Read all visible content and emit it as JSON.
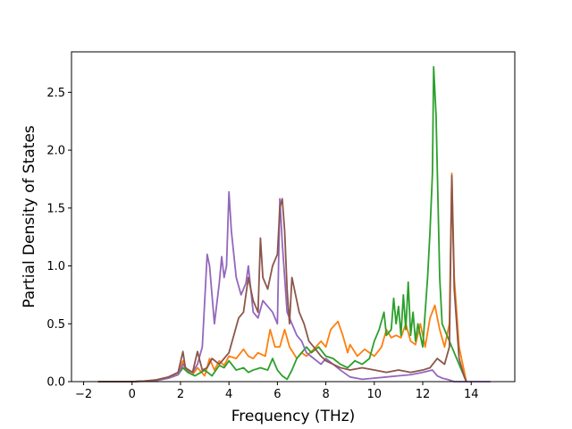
{
  "chart_data": {
    "type": "line",
    "title": "",
    "xlabel": "Frequency (THz)",
    "ylabel": "Partial Density of States",
    "xlim": [
      -2.5,
      15.8
    ],
    "ylim": [
      0,
      2.85
    ],
    "xticks": [
      -2,
      0,
      2,
      4,
      6,
      8,
      10,
      12,
      14
    ],
    "xtick_labels": [
      "−2",
      "0",
      "2",
      "4",
      "6",
      "8",
      "10",
      "12",
      "14"
    ],
    "yticks": [
      0.0,
      0.5,
      1.0,
      1.5,
      2.0,
      2.5
    ],
    "ytick_labels": [
      "0.0",
      "0.5",
      "1.0",
      "1.5",
      "2.0",
      "2.5"
    ],
    "grid": false,
    "legend": "none",
    "series": [
      {
        "color": "#ff7f0e",
        "points": [
          [
            -1.4,
            0
          ],
          [
            0,
            0
          ],
          [
            0.5,
            0.005
          ],
          [
            1.0,
            0.015
          ],
          [
            1.5,
            0.04
          ],
          [
            1.9,
            0.08
          ],
          [
            2.1,
            0.18
          ],
          [
            2.2,
            0.1
          ],
          [
            2.5,
            0.06
          ],
          [
            2.7,
            0.12
          ],
          [
            3.0,
            0.05
          ],
          [
            3.2,
            0.2
          ],
          [
            3.4,
            0.1
          ],
          [
            3.6,
            0.18
          ],
          [
            3.8,
            0.14
          ],
          [
            4.0,
            0.22
          ],
          [
            4.3,
            0.2
          ],
          [
            4.6,
            0.28
          ],
          [
            4.8,
            0.22
          ],
          [
            5.0,
            0.2
          ],
          [
            5.2,
            0.25
          ],
          [
            5.5,
            0.22
          ],
          [
            5.7,
            0.45
          ],
          [
            5.9,
            0.3
          ],
          [
            6.1,
            0.3
          ],
          [
            6.3,
            0.45
          ],
          [
            6.5,
            0.3
          ],
          [
            6.8,
            0.2
          ],
          [
            7.0,
            0.25
          ],
          [
            7.2,
            0.22
          ],
          [
            7.5,
            0.28
          ],
          [
            7.8,
            0.35
          ],
          [
            8.0,
            0.3
          ],
          [
            8.2,
            0.45
          ],
          [
            8.5,
            0.52
          ],
          [
            8.7,
            0.4
          ],
          [
            8.9,
            0.25
          ],
          [
            9.0,
            0.32
          ],
          [
            9.3,
            0.22
          ],
          [
            9.6,
            0.28
          ],
          [
            10.0,
            0.22
          ],
          [
            10.3,
            0.3
          ],
          [
            10.5,
            0.45
          ],
          [
            10.7,
            0.38
          ],
          [
            10.9,
            0.4
          ],
          [
            11.1,
            0.38
          ],
          [
            11.3,
            0.5
          ],
          [
            11.5,
            0.35
          ],
          [
            11.7,
            0.32
          ],
          [
            11.9,
            0.5
          ],
          [
            12.1,
            0.3
          ],
          [
            12.3,
            0.55
          ],
          [
            12.5,
            0.66
          ],
          [
            12.7,
            0.45
          ],
          [
            12.9,
            0.3
          ],
          [
            13.1,
            0.5
          ],
          [
            13.2,
            1.8
          ],
          [
            13.3,
            0.9
          ],
          [
            13.5,
            0.3
          ],
          [
            13.7,
            0.1
          ],
          [
            13.8,
            0
          ]
        ]
      },
      {
        "color": "#2ca02c",
        "points": [
          [
            -1.4,
            0
          ],
          [
            0,
            0
          ],
          [
            0.5,
            0.003
          ],
          [
            1.0,
            0.01
          ],
          [
            1.5,
            0.03
          ],
          [
            1.9,
            0.06
          ],
          [
            2.1,
            0.12
          ],
          [
            2.3,
            0.08
          ],
          [
            2.6,
            0.05
          ],
          [
            3.0,
            0.1
          ],
          [
            3.3,
            0.05
          ],
          [
            3.6,
            0.14
          ],
          [
            3.8,
            0.12
          ],
          [
            4.0,
            0.18
          ],
          [
            4.3,
            0.1
          ],
          [
            4.6,
            0.12
          ],
          [
            4.8,
            0.08
          ],
          [
            5.0,
            0.1
          ],
          [
            5.3,
            0.12
          ],
          [
            5.6,
            0.1
          ],
          [
            5.8,
            0.2
          ],
          [
            6.0,
            0.1
          ],
          [
            6.2,
            0.05
          ],
          [
            6.4,
            0.02
          ],
          [
            6.6,
            0.1
          ],
          [
            6.8,
            0.2
          ],
          [
            7.0,
            0.25
          ],
          [
            7.2,
            0.3
          ],
          [
            7.4,
            0.25
          ],
          [
            7.7,
            0.3
          ],
          [
            8.0,
            0.22
          ],
          [
            8.3,
            0.2
          ],
          [
            8.6,
            0.15
          ],
          [
            8.9,
            0.12
          ],
          [
            9.2,
            0.18
          ],
          [
            9.5,
            0.15
          ],
          [
            9.8,
            0.2
          ],
          [
            10.0,
            0.35
          ],
          [
            10.2,
            0.45
          ],
          [
            10.4,
            0.6
          ],
          [
            10.5,
            0.4
          ],
          [
            10.7,
            0.45
          ],
          [
            10.8,
            0.72
          ],
          [
            10.9,
            0.5
          ],
          [
            11.0,
            0.65
          ],
          [
            11.1,
            0.4
          ],
          [
            11.2,
            0.75
          ],
          [
            11.3,
            0.45
          ],
          [
            11.4,
            0.86
          ],
          [
            11.5,
            0.4
          ],
          [
            11.6,
            0.6
          ],
          [
            11.7,
            0.35
          ],
          [
            11.8,
            0.5
          ],
          [
            12.0,
            0.3
          ],
          [
            12.2,
            0.9
          ],
          [
            12.3,
            1.3
          ],
          [
            12.4,
            1.8
          ],
          [
            12.45,
            2.72
          ],
          [
            12.55,
            2.3
          ],
          [
            12.7,
            0.9
          ],
          [
            12.8,
            0.5
          ],
          [
            13.0,
            0.4
          ],
          [
            13.2,
            0.3
          ],
          [
            13.4,
            0.2
          ],
          [
            13.6,
            0.1
          ],
          [
            13.8,
            0
          ]
        ]
      },
      {
        "color": "#9467bd",
        "points": [
          [
            -1.4,
            0
          ],
          [
            0,
            0
          ],
          [
            0.5,
            0.005
          ],
          [
            1.0,
            0.01
          ],
          [
            1.5,
            0.03
          ],
          [
            1.9,
            0.06
          ],
          [
            2.1,
            0.15
          ],
          [
            2.3,
            0.1
          ],
          [
            2.5,
            0.08
          ],
          [
            2.7,
            0.15
          ],
          [
            2.9,
            0.3
          ],
          [
            3.1,
            1.1
          ],
          [
            3.2,
            1.0
          ],
          [
            3.4,
            0.5
          ],
          [
            3.6,
            0.85
          ],
          [
            3.7,
            1.08
          ],
          [
            3.8,
            0.9
          ],
          [
            3.9,
            1.0
          ],
          [
            4.0,
            1.64
          ],
          [
            4.1,
            1.3
          ],
          [
            4.3,
            0.9
          ],
          [
            4.5,
            0.75
          ],
          [
            4.7,
            0.85
          ],
          [
            4.8,
            1.0
          ],
          [
            5.0,
            0.6
          ],
          [
            5.2,
            0.55
          ],
          [
            5.4,
            0.7
          ],
          [
            5.6,
            0.65
          ],
          [
            5.8,
            0.6
          ],
          [
            6.0,
            0.5
          ],
          [
            6.1,
            1.58
          ],
          [
            6.2,
            1.2
          ],
          [
            6.4,
            0.6
          ],
          [
            6.6,
            0.5
          ],
          [
            6.8,
            0.4
          ],
          [
            7.0,
            0.35
          ],
          [
            7.2,
            0.25
          ],
          [
            7.5,
            0.2
          ],
          [
            7.8,
            0.15
          ],
          [
            8.0,
            0.2
          ],
          [
            8.3,
            0.15
          ],
          [
            8.6,
            0.1
          ],
          [
            9.0,
            0.04
          ],
          [
            9.5,
            0.02
          ],
          [
            10.0,
            0.03
          ],
          [
            10.5,
            0.04
          ],
          [
            11.0,
            0.05
          ],
          [
            11.5,
            0.06
          ],
          [
            12.0,
            0.08
          ],
          [
            12.4,
            0.1
          ],
          [
            12.6,
            0.05
          ],
          [
            12.8,
            0.03
          ],
          [
            13.0,
            0.02
          ],
          [
            13.3,
            0.0
          ],
          [
            14.8,
            0
          ]
        ]
      },
      {
        "color": "#8c564b",
        "points": [
          [
            -1.4,
            0
          ],
          [
            0,
            0
          ],
          [
            0.5,
            0.005
          ],
          [
            1.0,
            0.015
          ],
          [
            1.5,
            0.04
          ],
          [
            1.9,
            0.08
          ],
          [
            2.1,
            0.26
          ],
          [
            2.2,
            0.12
          ],
          [
            2.5,
            0.08
          ],
          [
            2.7,
            0.26
          ],
          [
            2.9,
            0.1
          ],
          [
            3.1,
            0.12
          ],
          [
            3.3,
            0.2
          ],
          [
            3.6,
            0.15
          ],
          [
            3.8,
            0.2
          ],
          [
            4.0,
            0.25
          ],
          [
            4.2,
            0.4
          ],
          [
            4.4,
            0.55
          ],
          [
            4.6,
            0.6
          ],
          [
            4.8,
            0.9
          ],
          [
            5.0,
            0.7
          ],
          [
            5.2,
            0.6
          ],
          [
            5.3,
            1.24
          ],
          [
            5.4,
            0.9
          ],
          [
            5.6,
            0.8
          ],
          [
            5.8,
            1.0
          ],
          [
            6.0,
            1.1
          ],
          [
            6.1,
            1.5
          ],
          [
            6.2,
            1.58
          ],
          [
            6.3,
            1.3
          ],
          [
            6.4,
            0.8
          ],
          [
            6.5,
            0.5
          ],
          [
            6.6,
            0.9
          ],
          [
            6.7,
            0.8
          ],
          [
            6.9,
            0.6
          ],
          [
            7.1,
            0.5
          ],
          [
            7.3,
            0.35
          ],
          [
            7.5,
            0.3
          ],
          [
            7.8,
            0.22
          ],
          [
            8.0,
            0.18
          ],
          [
            8.3,
            0.15
          ],
          [
            8.6,
            0.12
          ],
          [
            9.0,
            0.1
          ],
          [
            9.5,
            0.12
          ],
          [
            10.0,
            0.1
          ],
          [
            10.5,
            0.08
          ],
          [
            11.0,
            0.1
          ],
          [
            11.5,
            0.08
          ],
          [
            12.0,
            0.1
          ],
          [
            12.3,
            0.12
          ],
          [
            12.6,
            0.2
          ],
          [
            12.9,
            0.15
          ],
          [
            13.1,
            0.3
          ],
          [
            13.2,
            1.78
          ],
          [
            13.3,
            0.8
          ],
          [
            13.5,
            0.2
          ],
          [
            13.7,
            0.05
          ],
          [
            13.8,
            0
          ]
        ]
      }
    ]
  }
}
